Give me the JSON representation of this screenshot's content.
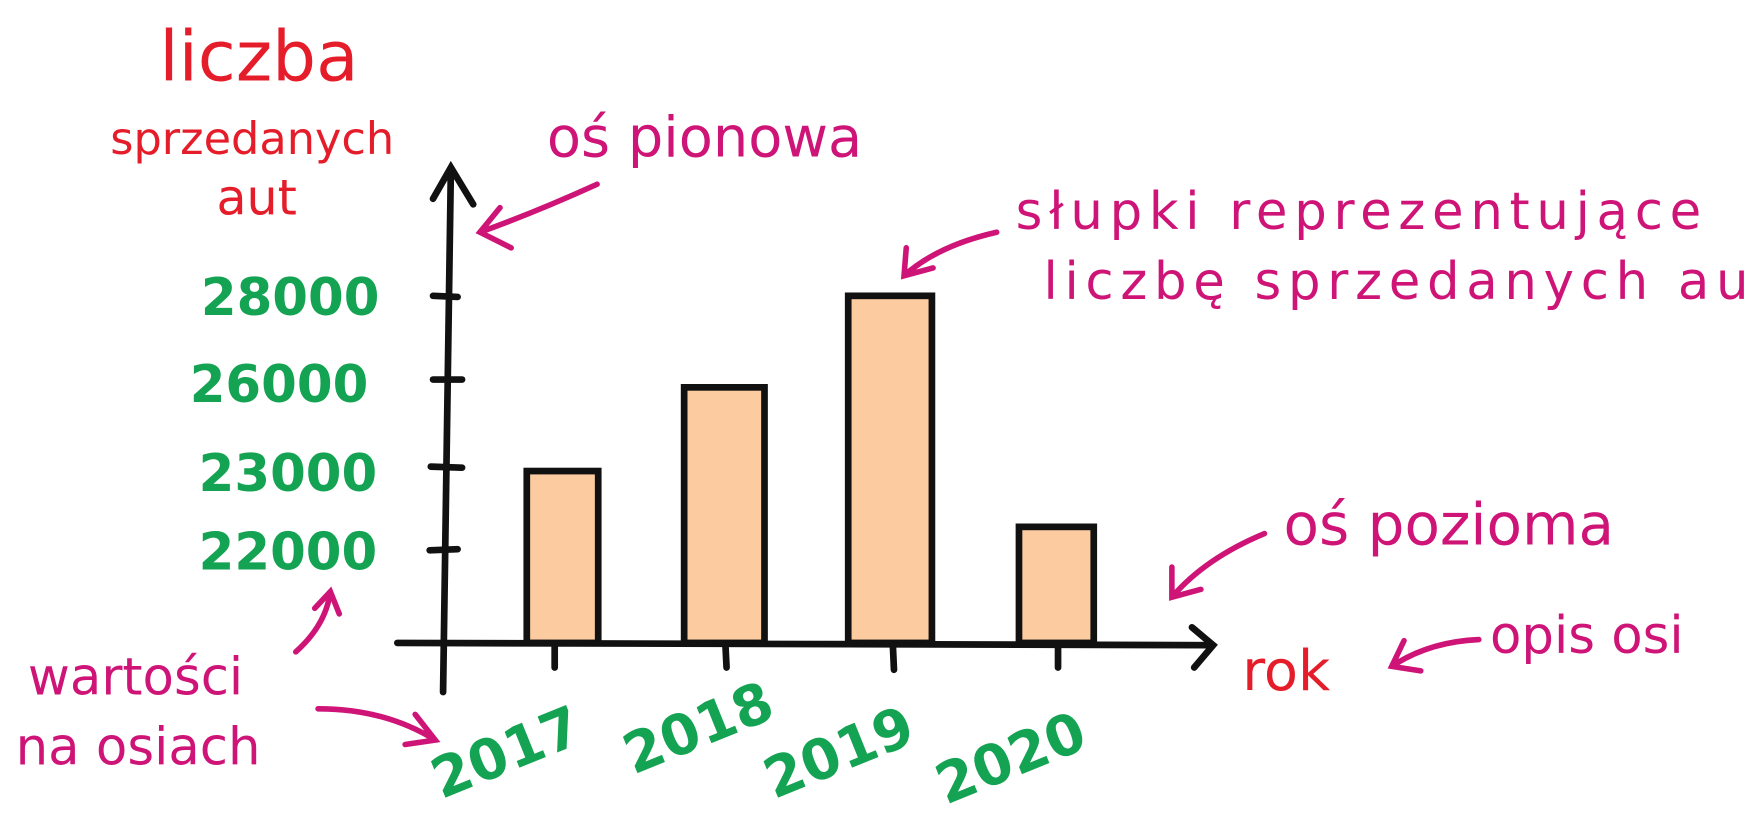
{
  "y_axis": {
    "title": [
      "liczba",
      "sprzedanych",
      "aut"
    ],
    "tick_labels": [
      "28000",
      "26000",
      "23000",
      "22000"
    ]
  },
  "x_axis": {
    "title": "rok",
    "tick_labels": [
      "2017",
      "2018",
      "2019",
      "2020"
    ]
  },
  "annotations": {
    "vertical_axis": "oś pionowa",
    "bars": [
      "słupki reprezentujące",
      "liczbę sprzedanych aut"
    ],
    "horizontal_axis": "oś pozioma",
    "axis_title": "opis osi",
    "axis_values": [
      "wartości",
      "na osiach"
    ]
  }
}
